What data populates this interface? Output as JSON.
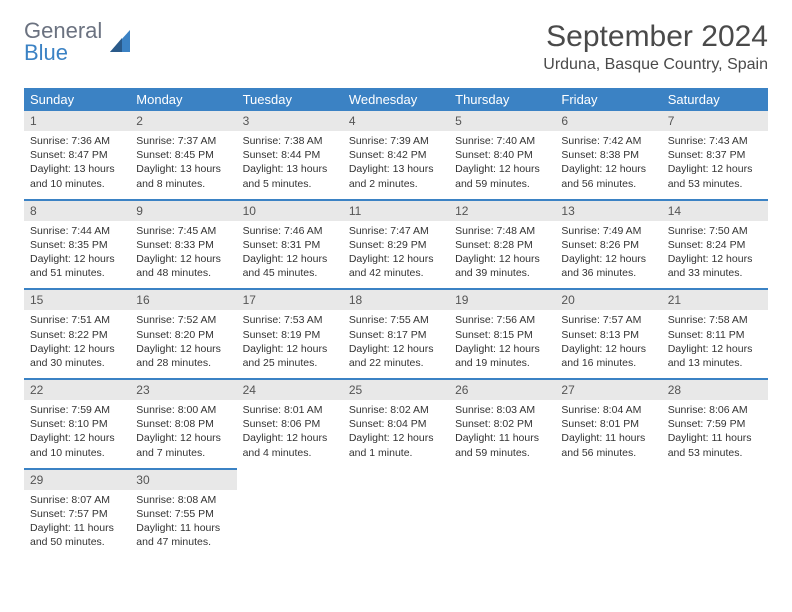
{
  "brand": {
    "line1": "General",
    "line2": "Blue"
  },
  "title": "September 2024",
  "location": "Urduna, Basque Country, Spain",
  "colors": {
    "header_bg": "#3b82c4",
    "header_text": "#ffffff",
    "daynum_bg": "#e8e8e8",
    "border": "#3b82c4",
    "body_text": "#333333",
    "brand_gray": "#6b7280",
    "brand_blue": "#3b82c4"
  },
  "weekdays": [
    "Sunday",
    "Monday",
    "Tuesday",
    "Wednesday",
    "Thursday",
    "Friday",
    "Saturday"
  ],
  "weeks": [
    [
      {
        "n": "1",
        "sr": "Sunrise: 7:36 AM",
        "ss": "Sunset: 8:47 PM",
        "dl1": "Daylight: 13 hours",
        "dl2": "and 10 minutes."
      },
      {
        "n": "2",
        "sr": "Sunrise: 7:37 AM",
        "ss": "Sunset: 8:45 PM",
        "dl1": "Daylight: 13 hours",
        "dl2": "and 8 minutes."
      },
      {
        "n": "3",
        "sr": "Sunrise: 7:38 AM",
        "ss": "Sunset: 8:44 PM",
        "dl1": "Daylight: 13 hours",
        "dl2": "and 5 minutes."
      },
      {
        "n": "4",
        "sr": "Sunrise: 7:39 AM",
        "ss": "Sunset: 8:42 PM",
        "dl1": "Daylight: 13 hours",
        "dl2": "and 2 minutes."
      },
      {
        "n": "5",
        "sr": "Sunrise: 7:40 AM",
        "ss": "Sunset: 8:40 PM",
        "dl1": "Daylight: 12 hours",
        "dl2": "and 59 minutes."
      },
      {
        "n": "6",
        "sr": "Sunrise: 7:42 AM",
        "ss": "Sunset: 8:38 PM",
        "dl1": "Daylight: 12 hours",
        "dl2": "and 56 minutes."
      },
      {
        "n": "7",
        "sr": "Sunrise: 7:43 AM",
        "ss": "Sunset: 8:37 PM",
        "dl1": "Daylight: 12 hours",
        "dl2": "and 53 minutes."
      }
    ],
    [
      {
        "n": "8",
        "sr": "Sunrise: 7:44 AM",
        "ss": "Sunset: 8:35 PM",
        "dl1": "Daylight: 12 hours",
        "dl2": "and 51 minutes."
      },
      {
        "n": "9",
        "sr": "Sunrise: 7:45 AM",
        "ss": "Sunset: 8:33 PM",
        "dl1": "Daylight: 12 hours",
        "dl2": "and 48 minutes."
      },
      {
        "n": "10",
        "sr": "Sunrise: 7:46 AM",
        "ss": "Sunset: 8:31 PM",
        "dl1": "Daylight: 12 hours",
        "dl2": "and 45 minutes."
      },
      {
        "n": "11",
        "sr": "Sunrise: 7:47 AM",
        "ss": "Sunset: 8:29 PM",
        "dl1": "Daylight: 12 hours",
        "dl2": "and 42 minutes."
      },
      {
        "n": "12",
        "sr": "Sunrise: 7:48 AM",
        "ss": "Sunset: 8:28 PM",
        "dl1": "Daylight: 12 hours",
        "dl2": "and 39 minutes."
      },
      {
        "n": "13",
        "sr": "Sunrise: 7:49 AM",
        "ss": "Sunset: 8:26 PM",
        "dl1": "Daylight: 12 hours",
        "dl2": "and 36 minutes."
      },
      {
        "n": "14",
        "sr": "Sunrise: 7:50 AM",
        "ss": "Sunset: 8:24 PM",
        "dl1": "Daylight: 12 hours",
        "dl2": "and 33 minutes."
      }
    ],
    [
      {
        "n": "15",
        "sr": "Sunrise: 7:51 AM",
        "ss": "Sunset: 8:22 PM",
        "dl1": "Daylight: 12 hours",
        "dl2": "and 30 minutes."
      },
      {
        "n": "16",
        "sr": "Sunrise: 7:52 AM",
        "ss": "Sunset: 8:20 PM",
        "dl1": "Daylight: 12 hours",
        "dl2": "and 28 minutes."
      },
      {
        "n": "17",
        "sr": "Sunrise: 7:53 AM",
        "ss": "Sunset: 8:19 PM",
        "dl1": "Daylight: 12 hours",
        "dl2": "and 25 minutes."
      },
      {
        "n": "18",
        "sr": "Sunrise: 7:55 AM",
        "ss": "Sunset: 8:17 PM",
        "dl1": "Daylight: 12 hours",
        "dl2": "and 22 minutes."
      },
      {
        "n": "19",
        "sr": "Sunrise: 7:56 AM",
        "ss": "Sunset: 8:15 PM",
        "dl1": "Daylight: 12 hours",
        "dl2": "and 19 minutes."
      },
      {
        "n": "20",
        "sr": "Sunrise: 7:57 AM",
        "ss": "Sunset: 8:13 PM",
        "dl1": "Daylight: 12 hours",
        "dl2": "and 16 minutes."
      },
      {
        "n": "21",
        "sr": "Sunrise: 7:58 AM",
        "ss": "Sunset: 8:11 PM",
        "dl1": "Daylight: 12 hours",
        "dl2": "and 13 minutes."
      }
    ],
    [
      {
        "n": "22",
        "sr": "Sunrise: 7:59 AM",
        "ss": "Sunset: 8:10 PM",
        "dl1": "Daylight: 12 hours",
        "dl2": "and 10 minutes."
      },
      {
        "n": "23",
        "sr": "Sunrise: 8:00 AM",
        "ss": "Sunset: 8:08 PM",
        "dl1": "Daylight: 12 hours",
        "dl2": "and 7 minutes."
      },
      {
        "n": "24",
        "sr": "Sunrise: 8:01 AM",
        "ss": "Sunset: 8:06 PM",
        "dl1": "Daylight: 12 hours",
        "dl2": "and 4 minutes."
      },
      {
        "n": "25",
        "sr": "Sunrise: 8:02 AM",
        "ss": "Sunset: 8:04 PM",
        "dl1": "Daylight: 12 hours",
        "dl2": "and 1 minute."
      },
      {
        "n": "26",
        "sr": "Sunrise: 8:03 AM",
        "ss": "Sunset: 8:02 PM",
        "dl1": "Daylight: 11 hours",
        "dl2": "and 59 minutes."
      },
      {
        "n": "27",
        "sr": "Sunrise: 8:04 AM",
        "ss": "Sunset: 8:01 PM",
        "dl1": "Daylight: 11 hours",
        "dl2": "and 56 minutes."
      },
      {
        "n": "28",
        "sr": "Sunrise: 8:06 AM",
        "ss": "Sunset: 7:59 PM",
        "dl1": "Daylight: 11 hours",
        "dl2": "and 53 minutes."
      }
    ],
    [
      {
        "n": "29",
        "sr": "Sunrise: 8:07 AM",
        "ss": "Sunset: 7:57 PM",
        "dl1": "Daylight: 11 hours",
        "dl2": "and 50 minutes."
      },
      {
        "n": "30",
        "sr": "Sunrise: 8:08 AM",
        "ss": "Sunset: 7:55 PM",
        "dl1": "Daylight: 11 hours",
        "dl2": "and 47 minutes."
      },
      null,
      null,
      null,
      null,
      null
    ]
  ]
}
